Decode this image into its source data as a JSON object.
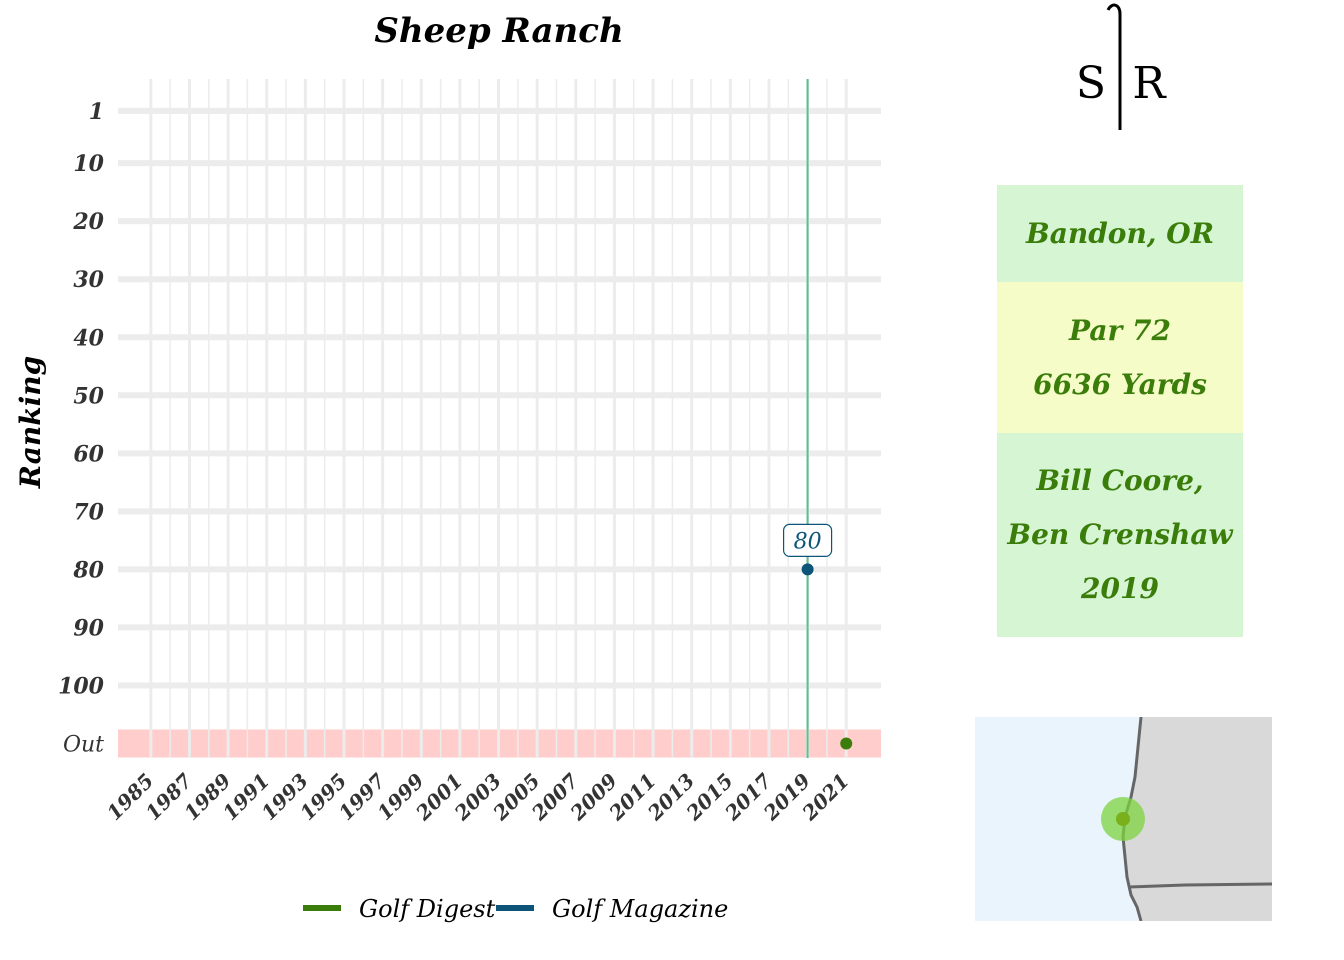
{
  "colors": {
    "golf_digest": "#3a7d0a",
    "golf_magazine": "#0d5578",
    "out_band": "#ffcdcb",
    "gridline": "#ececec",
    "year_line": "#5cbf8f",
    "info_green": "#d6f5d3",
    "info_yellow": "#f6fcc8",
    "map_water": "#eaf4fd",
    "map_land": "#d9d9d9"
  },
  "logo": {
    "left": "S",
    "right": "R"
  },
  "info": {
    "location": "Bandon, OR",
    "par": "Par 72",
    "yards": "6636 Yards",
    "designer_1": "Bill Coore,",
    "designer_2": "Ben Crenshaw",
    "year": "2019"
  },
  "chart_data": {
    "type": "scatter",
    "title": "Sheep Ranch",
    "ylabel": "Ranking",
    "xlabel": "",
    "x_ticks": [
      1985,
      1987,
      1989,
      1991,
      1993,
      1995,
      1997,
      1999,
      2001,
      2003,
      2005,
      2007,
      2009,
      2011,
      2013,
      2015,
      2017,
      2019,
      2021
    ],
    "x_minor_ticks": [
      1986,
      1988,
      1990,
      1992,
      1994,
      1996,
      1998,
      2000,
      2002,
      2004,
      2006,
      2008,
      2010,
      2012,
      2014,
      2016,
      2018,
      2020
    ],
    "xlim": [
      1983.3,
      2022.8
    ],
    "y_ticks": [
      {
        "label": "1",
        "value": 1
      },
      {
        "label": "10",
        "value": 10
      },
      {
        "label": "20",
        "value": 20
      },
      {
        "label": "30",
        "value": 30
      },
      {
        "label": "40",
        "value": 40
      },
      {
        "label": "50",
        "value": 50
      },
      {
        "label": "60",
        "value": 60
      },
      {
        "label": "70",
        "value": 70
      },
      {
        "label": "80",
        "value": 80
      },
      {
        "label": "90",
        "value": 90
      },
      {
        "label": "100",
        "value": 100
      },
      {
        "label": "Out",
        "value": 110
      }
    ],
    "ylim": [
      -4.5,
      112.5
    ],
    "y_reversed": true,
    "opening_year": 2019,
    "series": [
      {
        "name": "Golf Digest",
        "color": "#3a7d0a",
        "points": [
          {
            "x": 2021,
            "y": 110
          }
        ]
      },
      {
        "name": "Golf Magazine",
        "color": "#0d5578",
        "points": [
          {
            "x": 2019,
            "y": 80
          }
        ]
      }
    ],
    "annotations": [
      {
        "x": 2019,
        "y": 80,
        "text": "80",
        "series": "Golf Magazine"
      }
    ],
    "legend": {
      "position": "bottom",
      "entries": [
        "Golf Digest",
        "Golf Magazine"
      ]
    }
  },
  "map": {
    "marker_label": ""
  }
}
